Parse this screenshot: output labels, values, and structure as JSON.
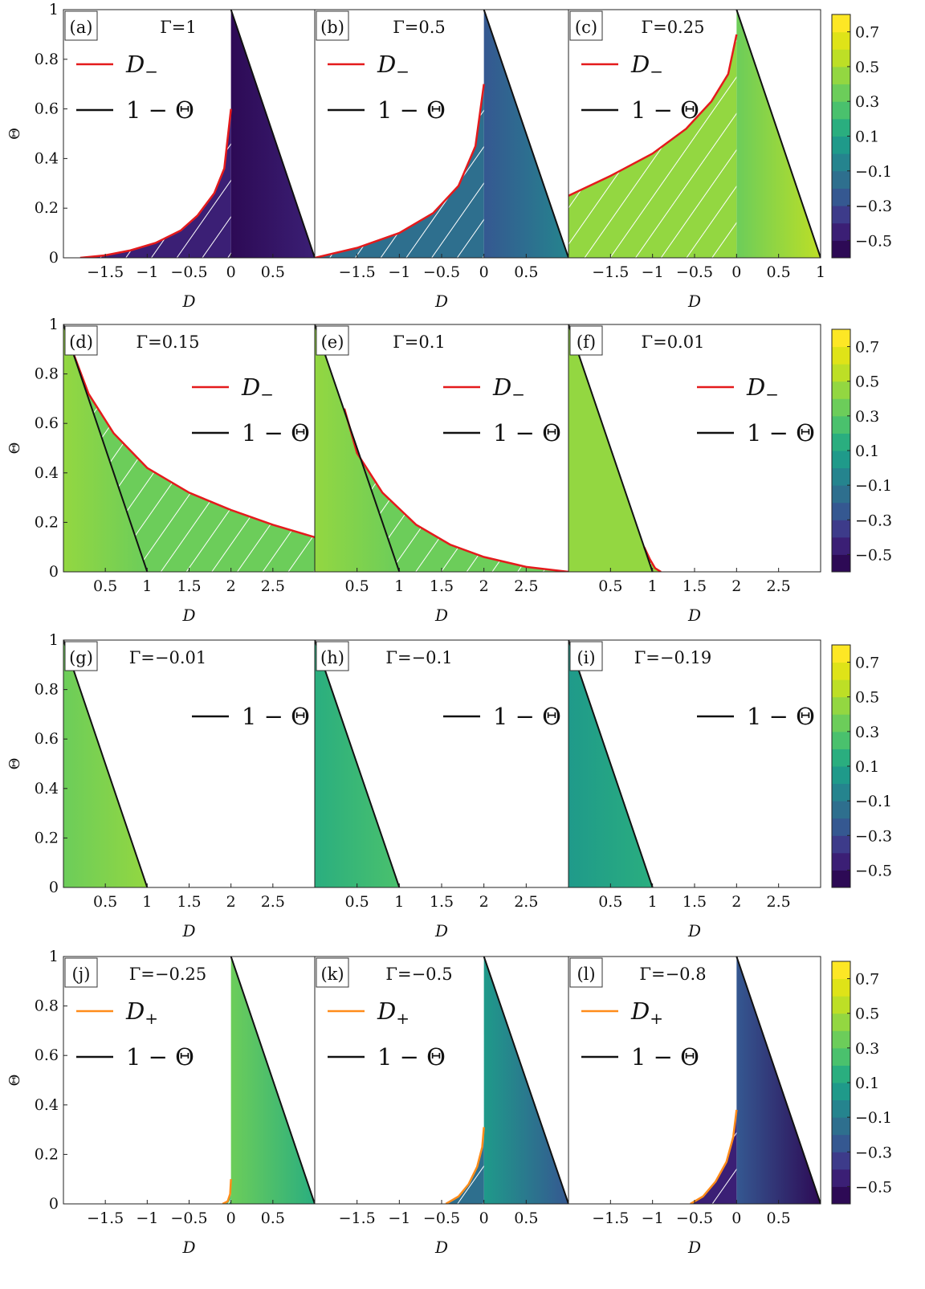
{
  "colorbar": {
    "ticks": [
      "0.7",
      "0.5",
      "0.3",
      "0.1",
      "−0.1",
      "−0.3",
      "−0.5"
    ],
    "tick_values": [
      0.7,
      0.5,
      0.3,
      0.1,
      -0.1,
      -0.3,
      -0.5
    ],
    "range": [
      -0.6,
      0.8
    ],
    "colors": [
      "#2d0a55",
      "#3b1f75",
      "#3d3b8a",
      "#355891",
      "#2e6f8e",
      "#25848e",
      "#1f9a8a",
      "#2aae7f",
      "#4ac16d",
      "#6ccd5a",
      "#93d741",
      "#bddf26",
      "#dfe318",
      "#fde725"
    ]
  },
  "chart_data": [
    {
      "panel": "(a)",
      "gamma": "Γ=1",
      "type": "contour",
      "xlabel": "D",
      "ylabel": "Θ",
      "xlim": [
        -2,
        1
      ],
      "ylim": [
        0,
        1
      ],
      "xticks": [
        -1.5,
        -1,
        -0.5,
        0,
        0.5
      ],
      "xtick_labels": [
        "−1.5",
        "−1",
        "−0.5",
        "0",
        "0.5"
      ],
      "yticks": [
        0,
        0.2,
        0.4,
        0.6,
        0.8,
        1
      ],
      "ytick_labels": [
        "0",
        "0.2",
        "0.4",
        "0.6",
        "0.8",
        "1"
      ],
      "curve": {
        "name": "D−",
        "color": "#e41a1c",
        "x": [
          -1.8,
          -1.5,
          -1.2,
          -0.9,
          -0.6,
          -0.4,
          -0.2,
          -0.08,
          0
        ],
        "y": [
          0.0,
          0.01,
          0.03,
          0.06,
          0.11,
          0.17,
          0.26,
          0.36,
          0.6
        ]
      },
      "boundary": "1 − Θ",
      "legend": [
        "D−",
        "1 − Θ"
      ],
      "fill_value_left": -0.5,
      "fill_value_right": -0.4
    },
    {
      "panel": "(b)",
      "gamma": "Γ=0.5",
      "type": "contour",
      "xlabel": "D",
      "ylabel": "Θ",
      "xlim": [
        -2,
        1
      ],
      "ylim": [
        0,
        1
      ],
      "xticks": [
        -1.5,
        -1,
        -0.5,
        0,
        0.5
      ],
      "xtick_labels": [
        "−1.5",
        "−1",
        "−0.5",
        "0",
        "0.5"
      ],
      "yticks": [
        0,
        0.2,
        0.4,
        0.6,
        0.8,
        1
      ],
      "ytick_labels": [
        "0",
        "0.2",
        "0.4",
        "0.6",
        "0.8",
        "1"
      ],
      "curve": {
        "name": "D−",
        "color": "#e41a1c",
        "x": [
          -2,
          -1.5,
          -1.0,
          -0.6,
          -0.3,
          -0.1,
          0
        ],
        "y": [
          0.0,
          0.04,
          0.1,
          0.18,
          0.29,
          0.45,
          0.7
        ]
      },
      "boundary": "1 − Θ",
      "legend": [
        "D−",
        "1 − Θ"
      ],
      "fill_value_left": -0.3,
      "fill_value_right": -0.1
    },
    {
      "panel": "(c)",
      "gamma": "Γ=0.25",
      "type": "contour",
      "xlabel": "D",
      "ylabel": "Θ",
      "xlim": [
        -2,
        1
      ],
      "ylim": [
        0,
        1
      ],
      "xticks": [
        -1.5,
        -1,
        -0.5,
        0,
        0.5,
        1
      ],
      "xtick_labels": [
        "−1.5",
        "−1",
        "−0.5",
        "0",
        "0.5",
        "1"
      ],
      "yticks": [
        0,
        0.2,
        0.4,
        0.6,
        0.8,
        1
      ],
      "ytick_labels": [
        "0",
        "0.2",
        "0.4",
        "0.6",
        "0.8",
        "1"
      ],
      "curve": {
        "name": "D−",
        "color": "#e41a1c",
        "x": [
          -2,
          -1.5,
          -1.0,
          -0.6,
          -0.3,
          -0.1,
          0
        ],
        "y": [
          0.25,
          0.33,
          0.42,
          0.52,
          0.63,
          0.74,
          0.9
        ]
      },
      "boundary": "1 − Θ",
      "legend": [
        "D−",
        "1 − Θ"
      ],
      "fill_value_left": 0.3,
      "fill_value_right": 0.5
    },
    {
      "panel": "(d)",
      "gamma": "Γ=0.15",
      "type": "contour",
      "xlabel": "D",
      "ylabel": "Θ",
      "xlim": [
        0,
        3
      ],
      "ylim": [
        0,
        1
      ],
      "xticks": [
        0.5,
        1,
        1.5,
        2,
        2.5
      ],
      "xtick_labels": [
        "0.5",
        "1",
        "1.5",
        "2",
        "2.5"
      ],
      "yticks": [
        0,
        0.2,
        0.4,
        0.6,
        0.8,
        1
      ],
      "ytick_labels": [
        "0",
        "0.2",
        "0.4",
        "0.6",
        "0.8",
        "1"
      ],
      "curve": {
        "name": "D−",
        "color": "#e41a1c",
        "x": [
          0.1,
          0.3,
          0.6,
          1.0,
          1.5,
          2.0,
          2.5,
          3.0
        ],
        "y": [
          0.9,
          0.72,
          0.56,
          0.42,
          0.32,
          0.25,
          0.19,
          0.14
        ]
      },
      "boundary": "1 − Θ",
      "legend": [
        "D−",
        "1 − Θ"
      ],
      "fill_value_left": 0.4,
      "fill_value_right": 0.3
    },
    {
      "panel": "(e)",
      "gamma": "Γ=0.1",
      "type": "contour",
      "xlabel": "D",
      "ylabel": "Θ",
      "xlim": [
        0,
        3
      ],
      "ylim": [
        0,
        1
      ],
      "xticks": [
        0.5,
        1,
        1.5,
        2,
        2.5
      ],
      "xtick_labels": [
        "0.5",
        "1",
        "1.5",
        "2",
        "2.5"
      ],
      "yticks": [
        0,
        0.2,
        0.4,
        0.6,
        0.8,
        1
      ],
      "ytick_labels": [
        "0",
        "0.2",
        "0.4",
        "0.6",
        "0.8",
        "1"
      ],
      "curve": {
        "name": "D−",
        "color": "#e41a1c",
        "x": [
          0.35,
          0.5,
          0.8,
          1.2,
          1.6,
          2.0,
          2.5,
          3.0
        ],
        "y": [
          0.66,
          0.48,
          0.32,
          0.19,
          0.11,
          0.06,
          0.02,
          0.0
        ]
      },
      "boundary": "1 − Θ",
      "legend": [
        "D−",
        "1 − Θ"
      ],
      "fill_value_left": 0.4,
      "fill_value_right": 0.3
    },
    {
      "panel": "(f)",
      "gamma": "Γ=0.01",
      "type": "contour",
      "xlabel": "D",
      "ylabel": "Θ",
      "xlim": [
        0,
        3
      ],
      "ylim": [
        0,
        1
      ],
      "xticks": [
        0.5,
        1,
        1.5,
        2,
        2.5
      ],
      "xtick_labels": [
        "0.5",
        "1",
        "1.5",
        "2",
        "2.5"
      ],
      "yticks": [
        0,
        0.2,
        0.4,
        0.6,
        0.8,
        1
      ],
      "ytick_labels": [
        "0",
        "0.2",
        "0.4",
        "0.6",
        "0.8",
        "1"
      ],
      "curve": {
        "name": "D−",
        "color": "#e41a1c",
        "x": [
          0.9,
          0.97,
          1.03,
          1.1
        ],
        "y": [
          0.1,
          0.05,
          0.015,
          0.0
        ]
      },
      "boundary": "1 − Θ",
      "legend": [
        "D−",
        "1 − Θ"
      ],
      "fill_value_left": 0.4,
      "fill_value_right": 0.4
    },
    {
      "panel": "(g)",
      "gamma": "Γ=−0.01",
      "type": "contour",
      "xlabel": "D",
      "ylabel": "Θ",
      "xlim": [
        0,
        3
      ],
      "ylim": [
        0,
        1
      ],
      "xticks": [
        0.5,
        1,
        1.5,
        2,
        2.5
      ],
      "xtick_labels": [
        "0.5",
        "1",
        "1.5",
        "2",
        "2.5"
      ],
      "yticks": [
        0,
        0.2,
        0.4,
        0.6,
        0.8,
        1
      ],
      "ytick_labels": [
        "0",
        "0.2",
        "0.4",
        "0.6",
        "0.8",
        "1"
      ],
      "boundary": "1 − Θ",
      "legend": [
        "1 − Θ"
      ],
      "fill_value_left": 0.3,
      "fill_value_right": 0.4
    },
    {
      "panel": "(h)",
      "gamma": "Γ=−0.1",
      "type": "contour",
      "xlabel": "D",
      "ylabel": "Θ",
      "xlim": [
        0,
        3
      ],
      "ylim": [
        0,
        1
      ],
      "xticks": [
        0.5,
        1,
        1.5,
        2,
        2.5
      ],
      "xtick_labels": [
        "0.5",
        "1",
        "1.5",
        "2",
        "2.5"
      ],
      "yticks": [
        0,
        0.2,
        0.4,
        0.6,
        0.8,
        1
      ],
      "ytick_labels": [
        "0",
        "0.2",
        "0.4",
        "0.6",
        "0.8",
        "1"
      ],
      "boundary": "1 − Θ",
      "legend": [
        "1 − Θ"
      ],
      "fill_value_left": 0.15,
      "fill_value_right": 0.2
    },
    {
      "panel": "(i)",
      "gamma": "Γ=−0.19",
      "type": "contour",
      "xlabel": "D",
      "ylabel": "Θ",
      "xlim": [
        0,
        3
      ],
      "ylim": [
        0,
        1
      ],
      "xticks": [
        0.5,
        1,
        1.5,
        2,
        2.5
      ],
      "xtick_labels": [
        "0.5",
        "1",
        "1.5",
        "2",
        "2.5"
      ],
      "yticks": [
        0,
        0.2,
        0.4,
        0.6,
        0.8,
        1
      ],
      "ytick_labels": [
        "0",
        "0.2",
        "0.4",
        "0.6",
        "0.8",
        "1"
      ],
      "boundary": "1 − Θ",
      "legend": [
        "1 − Θ"
      ],
      "fill_value_left": 0.05,
      "fill_value_right": 0.1
    },
    {
      "panel": "(j)",
      "gamma": "Γ=−0.25",
      "type": "contour",
      "xlabel": "D",
      "ylabel": "Θ",
      "xlim": [
        -2,
        1
      ],
      "ylim": [
        0,
        1
      ],
      "xticks": [
        -1.5,
        -1,
        -0.5,
        0,
        0.5
      ],
      "xtick_labels": [
        "−1.5",
        "−1",
        "−0.5",
        "0",
        "0.5"
      ],
      "yticks": [
        0,
        0.2,
        0.4,
        0.6,
        0.8,
        1
      ],
      "ytick_labels": [
        "0",
        "0.2",
        "0.4",
        "0.6",
        "0.8",
        "1"
      ],
      "curve": {
        "name": "D+",
        "color": "#ff8c1a",
        "x": [
          -0.1,
          -0.04,
          -0.01,
          0
        ],
        "y": [
          0.0,
          0.01,
          0.04,
          0.1
        ]
      },
      "boundary": "1 − Θ",
      "legend": [
        "D+",
        "1 − Θ"
      ],
      "fill_value_left": 0.35,
      "fill_value_right": 0.1
    },
    {
      "panel": "(k)",
      "gamma": "Γ=−0.5",
      "type": "contour",
      "xlabel": "D",
      "ylabel": "Θ",
      "xlim": [
        -2,
        1
      ],
      "ylim": [
        0,
        1
      ],
      "xticks": [
        -1.5,
        -1,
        -0.5,
        0,
        0.5
      ],
      "xtick_labels": [
        "−1.5",
        "−1",
        "−0.5",
        "0",
        "0.5"
      ],
      "yticks": [
        0,
        0.2,
        0.4,
        0.6,
        0.8,
        1
      ],
      "ytick_labels": [
        "0",
        "0.2",
        "0.4",
        "0.6",
        "0.8",
        "1"
      ],
      "curve": {
        "name": "D+",
        "color": "#ff8c1a",
        "x": [
          -0.45,
          -0.3,
          -0.18,
          -0.08,
          -0.02,
          0
        ],
        "y": [
          0.0,
          0.03,
          0.08,
          0.15,
          0.23,
          0.31
        ]
      },
      "boundary": "1 − Θ",
      "legend": [
        "D+",
        "1 − Θ"
      ],
      "fill_value_left": 0.0,
      "fill_value_right": -0.3
    },
    {
      "panel": "(l)",
      "gamma": "Γ=−0.8",
      "type": "contour",
      "xlabel": "D",
      "ylabel": "Θ",
      "xlim": [
        -2,
        1
      ],
      "ylim": [
        0,
        1
      ],
      "xticks": [
        -1.5,
        -1,
        -0.5,
        0,
        0.5
      ],
      "xtick_labels": [
        "−1.5",
        "−1",
        "−0.5",
        "0",
        "0.5"
      ],
      "yticks": [
        0,
        0.2,
        0.4,
        0.6,
        0.8,
        1
      ],
      "ytick_labels": [
        "0",
        "0.2",
        "0.4",
        "0.6",
        "0.8",
        "1"
      ],
      "curve": {
        "name": "D+",
        "color": "#ff8c1a",
        "x": [
          -0.55,
          -0.4,
          -0.25,
          -0.12,
          -0.04,
          0
        ],
        "y": [
          0.0,
          0.03,
          0.09,
          0.17,
          0.27,
          0.38
        ]
      },
      "boundary": "1 − Θ",
      "legend": [
        "D+",
        "1 − Θ"
      ],
      "fill_value_left": -0.3,
      "fill_value_right": -0.5
    }
  ]
}
